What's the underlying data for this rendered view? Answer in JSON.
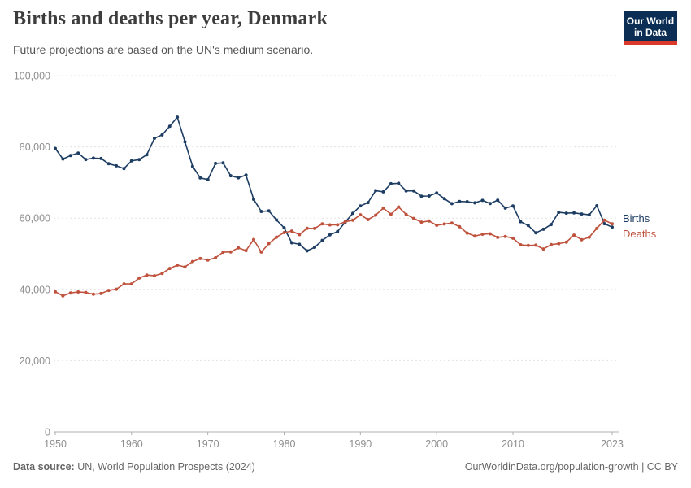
{
  "header": {
    "title": "Births and deaths per year, Denmark",
    "subtitle": "Future projections are based on the UN's medium scenario.",
    "logo": {
      "line1": "Our World",
      "line2": "in Data",
      "bg_color": "#0d2e54",
      "accent_color": "#d93a2b"
    }
  },
  "footer": {
    "datasource_label": "Data source:",
    "datasource_text": " UN, World Population Prospects (2024)",
    "right_text": "OurWorldinData.org/population-growth | CC BY"
  },
  "chart_data": {
    "type": "line",
    "title": "Births and deaths per year, Denmark",
    "xlabel": "",
    "ylabel": "",
    "xlim": [
      1950,
      2024
    ],
    "ylim": [
      0,
      100000
    ],
    "grid": "horizontal-dashed",
    "legend": "end-of-line-labels",
    "x_ticks": [
      1950,
      1960,
      1970,
      1980,
      1990,
      2000,
      2010,
      2023
    ],
    "y_ticks": [
      0,
      20000,
      40000,
      60000,
      80000,
      100000
    ],
    "y_tick_labels": [
      "0",
      "20,000",
      "40,000",
      "60,000",
      "80,000",
      "100,000"
    ],
    "x": [
      1950,
      1951,
      1952,
      1953,
      1954,
      1955,
      1956,
      1957,
      1958,
      1959,
      1960,
      1961,
      1962,
      1963,
      1964,
      1965,
      1966,
      1967,
      1968,
      1969,
      1970,
      1971,
      1972,
      1973,
      1974,
      1975,
      1976,
      1977,
      1978,
      1979,
      1980,
      1981,
      1982,
      1983,
      1984,
      1985,
      1986,
      1987,
      1988,
      1989,
      1990,
      1991,
      1992,
      1993,
      1994,
      1995,
      1996,
      1997,
      1998,
      1999,
      2000,
      2001,
      2002,
      2003,
      2004,
      2005,
      2006,
      2007,
      2008,
      2009,
      2010,
      2011,
      2012,
      2013,
      2014,
      2015,
      2016,
      2017,
      2018,
      2019,
      2020,
      2021,
      2022,
      2023
    ],
    "series": [
      {
        "name": "Births",
        "color": "#1d3d63",
        "label_dy": -10,
        "values": [
          79558,
          76593,
          77553,
          78261,
          76471,
          76839,
          76725,
          75264,
          74681,
          73928,
          76077,
          76439,
          77808,
          82413,
          83356,
          85796,
          88332,
          81410,
          74543,
          71298,
          70802,
          75359,
          75505,
          71895,
          71327,
          72071,
          65267,
          61878,
          62036,
          59464,
          57293,
          53089,
          52658,
          50822,
          51800,
          53749,
          55312,
          56221,
          58844,
          61351,
          63433,
          64358,
          67726,
          67369,
          69666,
          69771,
          67638,
          67648,
          66170,
          66220,
          67084,
          65458,
          64075,
          64682,
          64609,
          64282,
          64984,
          64082,
          65038,
          62818,
          63411,
          58998,
          57916,
          55873,
          56870,
          58205,
          61614,
          61397,
          61476,
          61167,
          60937,
          63473,
          58430,
          57469
        ]
      },
      {
        "name": "Deaths",
        "color": "#bf523d",
        "label_dy": 13,
        "values": [
          39337,
          38182,
          38999,
          39265,
          39135,
          38636,
          38841,
          39713,
          40044,
          41532,
          41520,
          43166,
          44022,
          43809,
          44470,
          45860,
          46800,
          46303,
          47811,
          48660,
          48233,
          48858,
          50445,
          50526,
          51637,
          50895,
          54001,
          50485,
          52864,
          54654,
          55939,
          56359,
          55368,
          57156,
          57109,
          58378,
          58100,
          58136,
          58984,
          59397,
          60926,
          59581,
          60821,
          62809,
          61099,
          63127,
          61043,
          59898,
          58872,
          59179,
          57998,
          58355,
          58610,
          57574,
          55806,
          54962,
          55477,
          55604,
          54591,
          54872,
          54368,
          52516,
          52325,
          52428,
          51340,
          52555,
          52824,
          53261,
          55232,
          53958,
          54645,
          57152,
          59435,
          58384
        ]
      }
    ]
  }
}
